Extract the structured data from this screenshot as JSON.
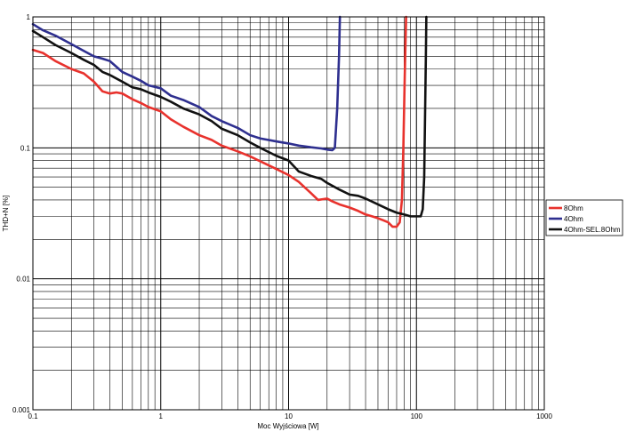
{
  "chart_data": {
    "type": "line",
    "xlabel": "Moc Wyjściowa [W]",
    "ylabel": "THD+N [%]",
    "x_scale": "log",
    "y_scale": "log",
    "xlim": [
      0.1,
      1000
    ],
    "ylim": [
      0.001,
      1
    ],
    "grid": true,
    "legend_position": "right",
    "x_ticks": [
      {
        "value": 0.1,
        "label": "0.1"
      },
      {
        "value": 1,
        "label": "1"
      },
      {
        "value": 10,
        "label": "10"
      },
      {
        "value": 100,
        "label": "100"
      },
      {
        "value": 1000,
        "label": "1000"
      }
    ],
    "y_ticks": [
      {
        "value": 1,
        "label": "1"
      },
      {
        "value": 0.1,
        "label": "0.1"
      },
      {
        "value": 0.01,
        "label": "0.01"
      },
      {
        "value": 0.001,
        "label": "0.001"
      }
    ],
    "series": [
      {
        "name": "8Ohm",
        "color": "#e8322d",
        "points": [
          [
            0.1,
            0.56
          ],
          [
            0.12,
            0.53
          ],
          [
            0.15,
            0.46
          ],
          [
            0.2,
            0.4
          ],
          [
            0.25,
            0.37
          ],
          [
            0.3,
            0.32
          ],
          [
            0.35,
            0.27
          ],
          [
            0.4,
            0.26
          ],
          [
            0.45,
            0.265
          ],
          [
            0.5,
            0.26
          ],
          [
            0.6,
            0.235
          ],
          [
            0.7,
            0.22
          ],
          [
            0.8,
            0.205
          ],
          [
            1.0,
            0.19
          ],
          [
            1.2,
            0.165
          ],
          [
            1.5,
            0.145
          ],
          [
            2.0,
            0.125
          ],
          [
            2.5,
            0.115
          ],
          [
            3.0,
            0.104
          ],
          [
            4.0,
            0.094
          ],
          [
            5.0,
            0.086
          ],
          [
            6.0,
            0.079
          ],
          [
            8.0,
            0.069
          ],
          [
            10.0,
            0.062
          ],
          [
            12.0,
            0.055
          ],
          [
            15.0,
            0.045
          ],
          [
            17.0,
            0.04
          ],
          [
            20.0,
            0.041
          ],
          [
            22.0,
            0.039
          ],
          [
            25.0,
            0.037
          ],
          [
            30.0,
            0.035
          ],
          [
            35.0,
            0.033
          ],
          [
            40.0,
            0.031
          ],
          [
            45.0,
            0.03
          ],
          [
            50.0,
            0.029
          ],
          [
            55.0,
            0.028
          ],
          [
            60.0,
            0.027
          ],
          [
            65.0,
            0.025
          ],
          [
            70.0,
            0.025
          ],
          [
            74.0,
            0.027
          ],
          [
            77.0,
            0.04
          ],
          [
            79.0,
            0.1
          ],
          [
            81.0,
            0.35
          ],
          [
            83.0,
            1.0
          ]
        ]
      },
      {
        "name": "4Ohm",
        "color": "#2e2f8f",
        "points": [
          [
            0.1,
            0.88
          ],
          [
            0.12,
            0.79
          ],
          [
            0.15,
            0.72
          ],
          [
            0.2,
            0.62
          ],
          [
            0.25,
            0.55
          ],
          [
            0.3,
            0.5
          ],
          [
            0.35,
            0.48
          ],
          [
            0.4,
            0.46
          ],
          [
            0.5,
            0.38
          ],
          [
            0.6,
            0.35
          ],
          [
            0.7,
            0.325
          ],
          [
            0.8,
            0.3
          ],
          [
            1.0,
            0.285
          ],
          [
            1.2,
            0.25
          ],
          [
            1.5,
            0.232
          ],
          [
            2.0,
            0.205
          ],
          [
            2.5,
            0.175
          ],
          [
            3.0,
            0.16
          ],
          [
            4.0,
            0.142
          ],
          [
            5.0,
            0.125
          ],
          [
            6.0,
            0.118
          ],
          [
            8.0,
            0.112
          ],
          [
            10.0,
            0.108
          ],
          [
            12.0,
            0.104
          ],
          [
            15.0,
            0.101
          ],
          [
            18.0,
            0.099
          ],
          [
            20.0,
            0.097
          ],
          [
            22.0,
            0.096
          ],
          [
            23.0,
            0.1
          ],
          [
            24.0,
            0.2
          ],
          [
            24.8,
            0.5
          ],
          [
            25.2,
            1.0
          ]
        ]
      },
      {
        "name": "4Ohm-SEL.8Ohm",
        "color": "#111111",
        "points": [
          [
            0.1,
            0.78
          ],
          [
            0.12,
            0.7
          ],
          [
            0.15,
            0.61
          ],
          [
            0.2,
            0.53
          ],
          [
            0.25,
            0.47
          ],
          [
            0.3,
            0.43
          ],
          [
            0.35,
            0.38
          ],
          [
            0.4,
            0.36
          ],
          [
            0.5,
            0.32
          ],
          [
            0.6,
            0.29
          ],
          [
            0.7,
            0.28
          ],
          [
            0.8,
            0.265
          ],
          [
            1.0,
            0.245
          ],
          [
            1.2,
            0.225
          ],
          [
            1.5,
            0.2
          ],
          [
            2.0,
            0.18
          ],
          [
            2.5,
            0.16
          ],
          [
            3.0,
            0.14
          ],
          [
            4.0,
            0.125
          ],
          [
            5.0,
            0.11
          ],
          [
            6.0,
            0.1
          ],
          [
            8.0,
            0.087
          ],
          [
            10.0,
            0.08
          ],
          [
            12.0,
            0.066
          ],
          [
            15.0,
            0.061
          ],
          [
            18.0,
            0.058
          ],
          [
            20.0,
            0.054
          ],
          [
            25.0,
            0.048
          ],
          [
            30.0,
            0.044
          ],
          [
            35.0,
            0.043
          ],
          [
            40.0,
            0.041
          ],
          [
            50.0,
            0.037
          ],
          [
            60.0,
            0.034
          ],
          [
            70.0,
            0.032
          ],
          [
            80.0,
            0.031
          ],
          [
            90.0,
            0.03
          ],
          [
            100.0,
            0.03
          ],
          [
            108.0,
            0.03
          ],
          [
            112.0,
            0.034
          ],
          [
            115.0,
            0.06
          ],
          [
            117.0,
            0.2
          ],
          [
            118.5,
            0.5
          ],
          [
            119.5,
            1.0
          ]
        ]
      }
    ]
  }
}
